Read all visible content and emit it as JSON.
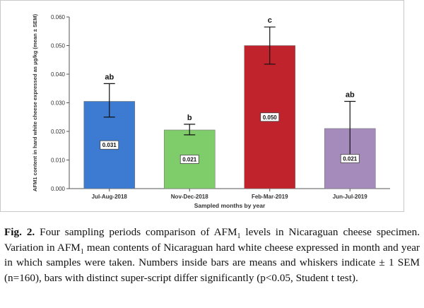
{
  "chart_data": {
    "type": "bar",
    "title": "",
    "xlabel": "Sampled months by year",
    "ylabel": "AFM1 content in hard white cheese expressed as µg/kg (mean ± SEM)",
    "ylim": [
      0,
      0.06
    ],
    "yticks": [
      "0.000",
      "0.010",
      "0.020",
      "0.030",
      "0.040",
      "0.050",
      "0.060"
    ],
    "categories": [
      "Jul-Aug-2018",
      "Nov-Dec-2018",
      "Feb-Mar-2019",
      "Jun-Jul-2019"
    ],
    "values": [
      0.0305,
      0.0205,
      0.05,
      0.021
    ],
    "value_labels": [
      "0.031",
      "0.021",
      "0.050",
      "0.021"
    ],
    "error_low": [
      0.025,
      0.0188,
      0.0435,
      0.0112
    ],
    "error_high": [
      0.0367,
      0.0225,
      0.0565,
      0.0305
    ],
    "superscripts": [
      "ab",
      "b",
      "c",
      "ab"
    ],
    "colors": [
      "#3c7bd1",
      "#7fcc6a",
      "#c1232c",
      "#a58bbb"
    ],
    "grid": false,
    "legend": "none"
  },
  "caption": {
    "label": "Fig. 2.",
    "line1_pre": "Four sampling periods comparison of AFM",
    "line1_sub": "1",
    "line1_post": " levels in Nicaraguan cheese specimen. Variation in AFM",
    "line2_sub": "1",
    "line2_post": " mean contents of Nicaraguan hard white cheese expressed in month and year in which samples were taken. Numbers inside bars are means and whiskers indicate ± 1 SEM (n=160), bars with distinct super-script differ significantly (p<0.05, Student t test)."
  }
}
